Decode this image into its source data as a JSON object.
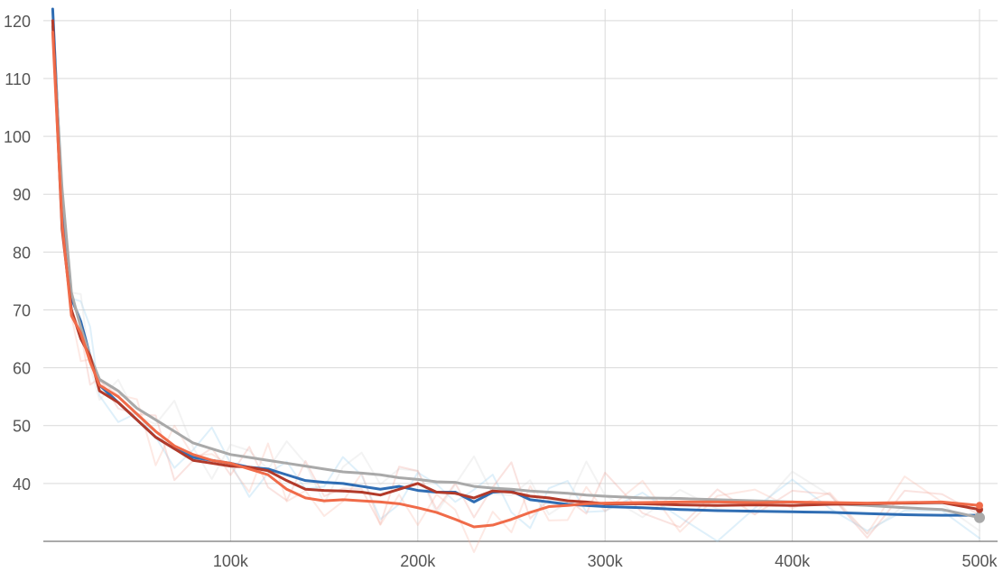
{
  "chart_data": {
    "type": "line",
    "xlim": [
      0,
      500000
    ],
    "ylim": [
      30,
      122
    ],
    "grid": true,
    "x_ticks": [
      {
        "value": 100000,
        "label": "100k"
      },
      {
        "value": 200000,
        "label": "200k"
      },
      {
        "value": 300000,
        "label": "300k"
      },
      {
        "value": 400000,
        "label": "400k"
      },
      {
        "value": 500000,
        "label": "500k"
      }
    ],
    "y_ticks": [
      {
        "value": 40,
        "label": "40"
      },
      {
        "value": 50,
        "label": "50"
      },
      {
        "value": 60,
        "label": "60"
      },
      {
        "value": 70,
        "label": "70"
      },
      {
        "value": 80,
        "label": "80"
      },
      {
        "value": 90,
        "label": "90"
      },
      {
        "value": 100,
        "label": "100"
      },
      {
        "value": 110,
        "label": "110"
      },
      {
        "value": 120,
        "label": "120"
      }
    ],
    "series": [
      {
        "color": "#2f6db3",
        "raw_color": "#8cc8ec",
        "points": [
          [
            5000,
            122
          ],
          [
            10000,
            88
          ],
          [
            15000,
            72
          ],
          [
            20000,
            68
          ],
          [
            25000,
            62
          ],
          [
            30000,
            57
          ],
          [
            40000,
            54
          ],
          [
            50000,
            51
          ],
          [
            60000,
            48
          ],
          [
            70000,
            46
          ],
          [
            80000,
            44.5
          ],
          [
            90000,
            44
          ],
          [
            100000,
            43.5
          ],
          [
            110000,
            42.8
          ],
          [
            120000,
            42.5
          ],
          [
            130000,
            41.5
          ],
          [
            140000,
            40.5
          ],
          [
            150000,
            40.2
          ],
          [
            160000,
            40
          ],
          [
            170000,
            39.5
          ],
          [
            180000,
            39
          ],
          [
            190000,
            39.5
          ],
          [
            200000,
            38.8
          ],
          [
            210000,
            38.5
          ],
          [
            220000,
            38.5
          ],
          [
            230000,
            36.8
          ],
          [
            240000,
            38.5
          ],
          [
            250000,
            38.7
          ],
          [
            260000,
            37.2
          ],
          [
            270000,
            36.8
          ],
          [
            280000,
            36.4
          ],
          [
            290000,
            36.2
          ],
          [
            300000,
            36
          ],
          [
            320000,
            35.8
          ],
          [
            340000,
            35.5
          ],
          [
            360000,
            35.3
          ],
          [
            380000,
            35.2
          ],
          [
            400000,
            35.1
          ],
          [
            420000,
            35
          ],
          [
            440000,
            34.8
          ],
          [
            460000,
            34.6
          ],
          [
            480000,
            34.5
          ],
          [
            500000,
            34.5
          ]
        ]
      },
      {
        "color": "#a9a9a9",
        "raw_color": "#d3d3d3",
        "points": [
          [
            5000,
            119
          ],
          [
            10000,
            91
          ],
          [
            15000,
            73
          ],
          [
            20000,
            67
          ],
          [
            25000,
            62
          ],
          [
            30000,
            58
          ],
          [
            40000,
            56
          ],
          [
            50000,
            53
          ],
          [
            60000,
            51
          ],
          [
            70000,
            49
          ],
          [
            80000,
            47
          ],
          [
            90000,
            46
          ],
          [
            100000,
            45
          ],
          [
            110000,
            44.5
          ],
          [
            120000,
            44
          ],
          [
            130000,
            43.5
          ],
          [
            140000,
            43
          ],
          [
            150000,
            42.5
          ],
          [
            160000,
            42
          ],
          [
            170000,
            41.8
          ],
          [
            180000,
            41.5
          ],
          [
            190000,
            41
          ],
          [
            200000,
            40.7
          ],
          [
            210000,
            40.3
          ],
          [
            220000,
            40.2
          ],
          [
            230000,
            39.5
          ],
          [
            240000,
            39.2
          ],
          [
            250000,
            39
          ],
          [
            260000,
            38.7
          ],
          [
            270000,
            38.5
          ],
          [
            280000,
            38.3
          ],
          [
            290000,
            38
          ],
          [
            300000,
            37.8
          ],
          [
            320000,
            37.5
          ],
          [
            340000,
            37.4
          ],
          [
            360000,
            37.2
          ],
          [
            380000,
            37
          ],
          [
            400000,
            36.8
          ],
          [
            420000,
            36.5
          ],
          [
            440000,
            36.2
          ],
          [
            460000,
            35.8
          ],
          [
            480000,
            35.5
          ],
          [
            500000,
            34.1
          ]
        ]
      },
      {
        "color": "#b23a2a",
        "raw_color": "#ee9c8f",
        "points": [
          [
            5000,
            120
          ],
          [
            10000,
            84
          ],
          [
            15000,
            70
          ],
          [
            20000,
            65
          ],
          [
            25000,
            62
          ],
          [
            30000,
            56
          ],
          [
            40000,
            54
          ],
          [
            50000,
            51
          ],
          [
            60000,
            48
          ],
          [
            70000,
            46
          ],
          [
            80000,
            44
          ],
          [
            90000,
            43.5
          ],
          [
            100000,
            43
          ],
          [
            110000,
            42.8
          ],
          [
            120000,
            42.2
          ],
          [
            130000,
            40.5
          ],
          [
            140000,
            39
          ],
          [
            150000,
            38.8
          ],
          [
            160000,
            38.7
          ],
          [
            170000,
            38.5
          ],
          [
            180000,
            38
          ],
          [
            190000,
            39
          ],
          [
            200000,
            40
          ],
          [
            210000,
            38.5
          ],
          [
            220000,
            38.3
          ],
          [
            230000,
            37.5
          ],
          [
            240000,
            38.7
          ],
          [
            250000,
            38.5
          ],
          [
            260000,
            37.8
          ],
          [
            270000,
            37.5
          ],
          [
            280000,
            37
          ],
          [
            290000,
            36.8
          ],
          [
            300000,
            36.5
          ],
          [
            320000,
            36.5
          ],
          [
            340000,
            36.3
          ],
          [
            360000,
            36.2
          ],
          [
            380000,
            36.3
          ],
          [
            400000,
            36.2
          ],
          [
            420000,
            36.4
          ],
          [
            440000,
            36.5
          ],
          [
            460000,
            36.6
          ],
          [
            480000,
            36.7
          ],
          [
            500000,
            35.5
          ]
        ]
      },
      {
        "color": "#f06b49",
        "raw_color": "#f7b09d",
        "points": [
          [
            5000,
            118
          ],
          [
            10000,
            85
          ],
          [
            15000,
            69
          ],
          [
            20000,
            66
          ],
          [
            25000,
            61
          ],
          [
            30000,
            57
          ],
          [
            40000,
            55
          ],
          [
            50000,
            52
          ],
          [
            60000,
            49
          ],
          [
            70000,
            46.5
          ],
          [
            80000,
            45
          ],
          [
            90000,
            44
          ],
          [
            100000,
            43.5
          ],
          [
            110000,
            42.5
          ],
          [
            120000,
            41.5
          ],
          [
            130000,
            39
          ],
          [
            140000,
            37.5
          ],
          [
            150000,
            37
          ],
          [
            160000,
            37.2
          ],
          [
            170000,
            37
          ],
          [
            180000,
            36.8
          ],
          [
            190000,
            36.5
          ],
          [
            200000,
            35.8
          ],
          [
            210000,
            35
          ],
          [
            220000,
            33.8
          ],
          [
            230000,
            32.5
          ],
          [
            240000,
            32.8
          ],
          [
            250000,
            33.8
          ],
          [
            260000,
            35
          ],
          [
            270000,
            36
          ],
          [
            280000,
            36.2
          ],
          [
            290000,
            36.5
          ],
          [
            300000,
            36.6
          ],
          [
            320000,
            36.7
          ],
          [
            340000,
            36.8
          ],
          [
            360000,
            36.8
          ],
          [
            380000,
            36.7
          ],
          [
            400000,
            36.8
          ],
          [
            420000,
            36.7
          ],
          [
            440000,
            36.6
          ],
          [
            460000,
            36.7
          ],
          [
            480000,
            36.8
          ],
          [
            500000,
            36.2
          ]
        ]
      }
    ]
  }
}
